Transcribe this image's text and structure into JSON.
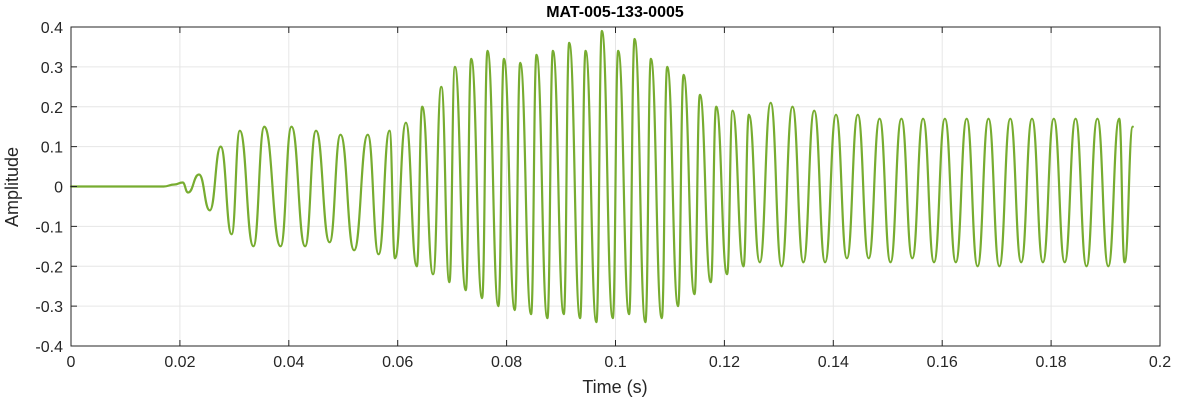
{
  "chart_data": {
    "type": "line",
    "title": "MAT-005-133-0005",
    "xlabel": "Time (s)",
    "ylabel": "Amplitude",
    "xlim": [
      0,
      0.2
    ],
    "ylim": [
      -0.4,
      0.4
    ],
    "grid": true,
    "legend": "none",
    "xticks": [
      0,
      0.02,
      0.04,
      0.06,
      0.08,
      0.1,
      0.12,
      0.14,
      0.16,
      0.18,
      0.2
    ],
    "xtick_labels": [
      "0",
      "0.02",
      "0.04",
      "0.06",
      "0.08",
      "0.1",
      "0.12",
      "0.14",
      "0.16",
      "0.18",
      "0.2"
    ],
    "yticks": [
      -0.4,
      -0.3,
      -0.2,
      -0.1,
      0,
      0.1,
      0.2,
      0.3,
      0.4
    ],
    "ytick_labels": [
      "-0.4",
      "-0.3",
      "-0.2",
      "-0.1",
      "0",
      "0.1",
      "0.2",
      "0.3",
      "0.4"
    ],
    "colors": {
      "line": "#77AC30",
      "grid": "#e6e6e6",
      "axes": "#262626",
      "background": "#ffffff"
    },
    "series": [
      {
        "name": "",
        "x": [
          0,
          0.01,
          0.017,
          0.019,
          0.0205,
          0.0215,
          0.0235,
          0.0255,
          0.0275,
          0.0295,
          0.031,
          0.0335,
          0.0355,
          0.0385,
          0.0405,
          0.043,
          0.045,
          0.0475,
          0.0495,
          0.052,
          0.0545,
          0.0565,
          0.0585,
          0.0595,
          0.0615,
          0.0635,
          0.0645,
          0.0665,
          0.068,
          0.0695,
          0.0705,
          0.0725,
          0.0735,
          0.0755,
          0.0765,
          0.0785,
          0.0795,
          0.0815,
          0.0825,
          0.0845,
          0.0855,
          0.0875,
          0.0885,
          0.0905,
          0.0915,
          0.0935,
          0.0945,
          0.0965,
          0.0975,
          0.0995,
          0.1005,
          0.1025,
          0.1035,
          0.1055,
          0.1065,
          0.1085,
          0.1095,
          0.1115,
          0.1125,
          0.1145,
          0.1155,
          0.1175,
          0.1185,
          0.1205,
          0.1215,
          0.1235,
          0.1245,
          0.1265,
          0.1285,
          0.1305,
          0.1325,
          0.1345,
          0.1365,
          0.1385,
          0.1405,
          0.1425,
          0.1445,
          0.1465,
          0.1485,
          0.1505,
          0.1525,
          0.1545,
          0.1565,
          0.1585,
          0.1605,
          0.1625,
          0.1645,
          0.1665,
          0.1685,
          0.1705,
          0.1725,
          0.1745,
          0.1765,
          0.1785,
          0.1805,
          0.1825,
          0.1845,
          0.1865,
          0.1885,
          0.1905,
          0.1925,
          0.1935,
          0.195
        ],
        "y": [
          0,
          0,
          0,
          0.005,
          0.01,
          -0.015,
          0.03,
          -0.06,
          0.1,
          -0.12,
          0.14,
          -0.15,
          0.15,
          -0.15,
          0.15,
          -0.15,
          0.14,
          -0.14,
          0.13,
          -0.16,
          0.13,
          -0.17,
          0.14,
          -0.18,
          0.16,
          -0.2,
          0.2,
          -0.22,
          0.25,
          -0.24,
          0.3,
          -0.26,
          0.32,
          -0.28,
          0.34,
          -0.3,
          0.32,
          -0.31,
          0.31,
          -0.32,
          0.33,
          -0.33,
          0.34,
          -0.32,
          0.36,
          -0.33,
          0.34,
          -0.34,
          0.39,
          -0.33,
          0.34,
          -0.32,
          0.37,
          -0.34,
          0.32,
          -0.33,
          0.3,
          -0.3,
          0.28,
          -0.27,
          0.23,
          -0.24,
          0.2,
          -0.22,
          0.19,
          -0.2,
          0.18,
          -0.19,
          0.21,
          -0.2,
          0.2,
          -0.19,
          0.19,
          -0.19,
          0.18,
          -0.18,
          0.18,
          -0.18,
          0.17,
          -0.19,
          0.17,
          -0.18,
          0.17,
          -0.19,
          0.17,
          -0.19,
          0.17,
          -0.2,
          0.17,
          -0.2,
          0.17,
          -0.19,
          0.17,
          -0.19,
          0.17,
          -0.19,
          0.17,
          -0.2,
          0.17,
          -0.2,
          0.17,
          -0.19,
          0.15
        ]
      }
    ]
  }
}
